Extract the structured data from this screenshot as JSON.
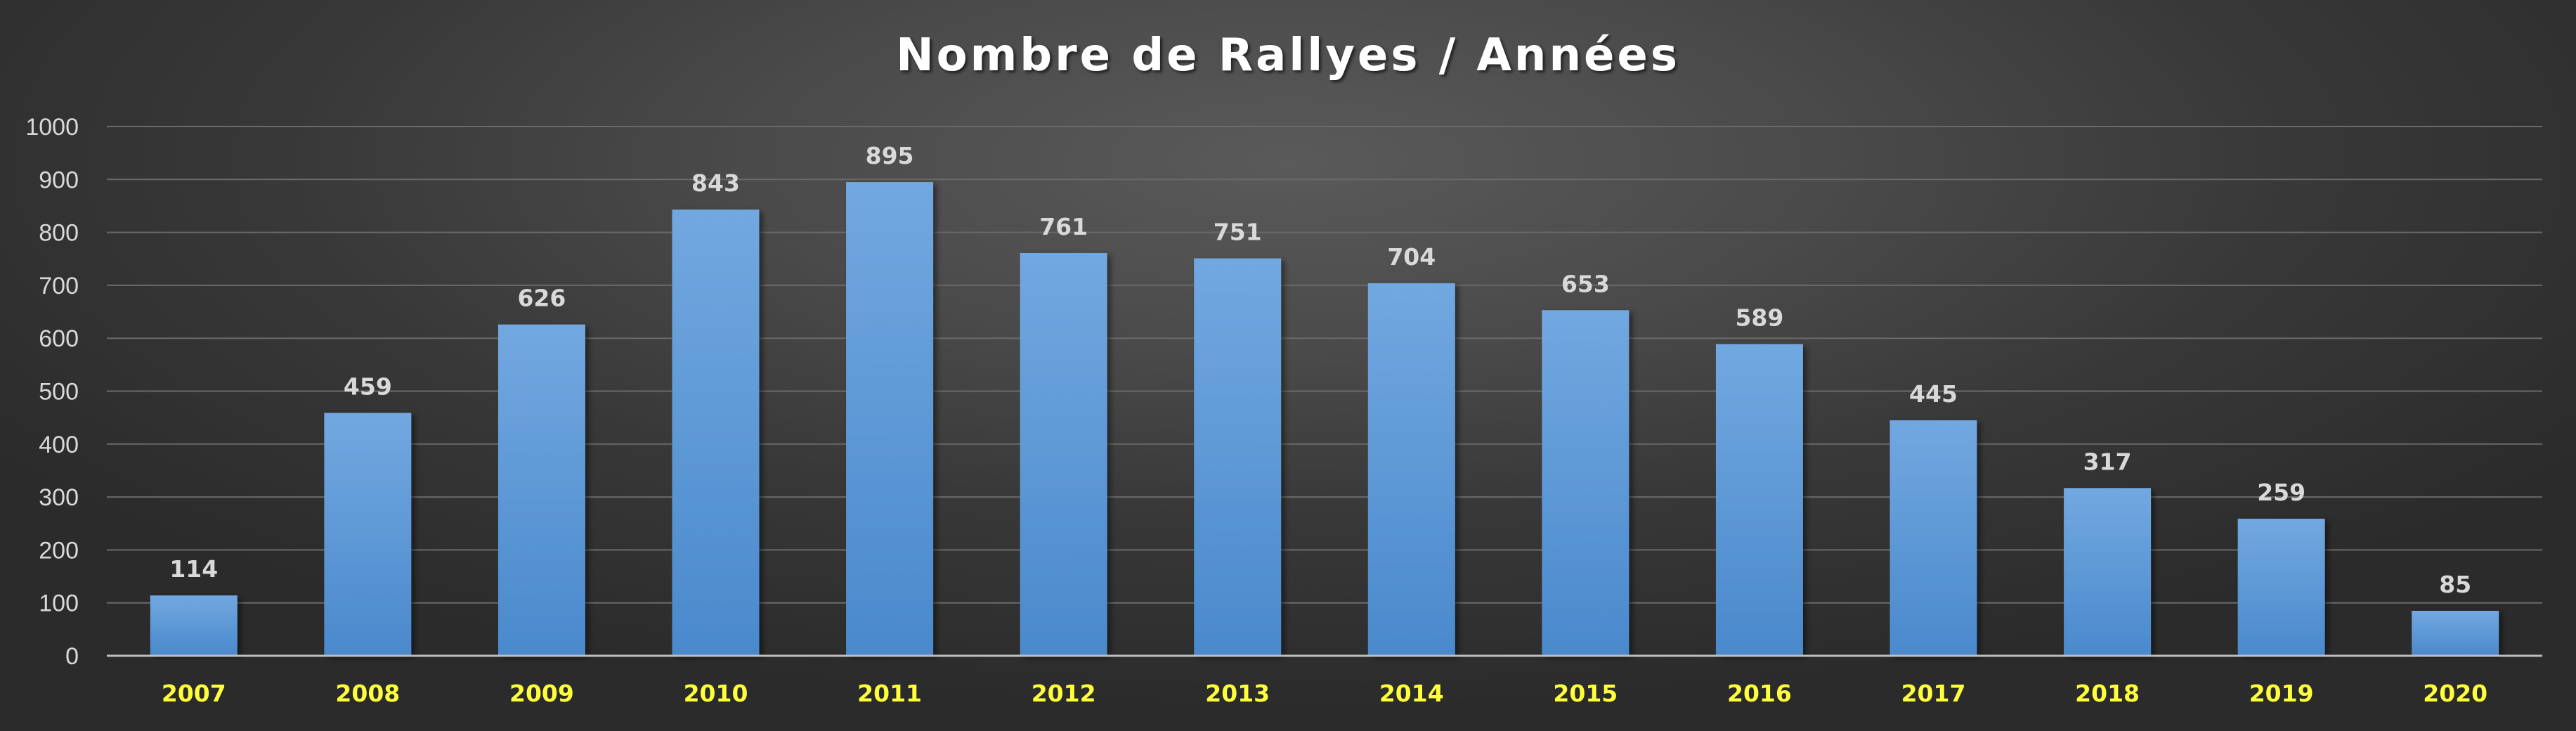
{
  "chart_data": {
    "type": "bar",
    "title": "Nombre de Rallyes / Années",
    "xlabel": "",
    "ylabel": "",
    "categories": [
      "2007",
      "2008",
      "2009",
      "2010",
      "2011",
      "2012",
      "2013",
      "2014",
      "2015",
      "2016",
      "2017",
      "2018",
      "2019",
      "2020"
    ],
    "values": [
      114,
      459,
      626,
      843,
      895,
      761,
      751,
      704,
      653,
      589,
      445,
      317,
      259,
      85
    ],
    "ylim": [
      0,
      1000
    ],
    "yticks": [
      0,
      100,
      200,
      300,
      400,
      500,
      600,
      700,
      800,
      900,
      1000
    ],
    "grid": true,
    "legend": "none",
    "data_labels": true,
    "colors": {
      "bar_top": "#72a8e0",
      "bar_bottom": "#4a89cc",
      "x_tick_text": "#ffff3b",
      "y_tick_text": "#d9d9d9",
      "data_label_text": "#d9d9d9",
      "title_text": "#ffffff",
      "gridline": "#6a6a6a",
      "axis": "#bfbfbf"
    }
  }
}
